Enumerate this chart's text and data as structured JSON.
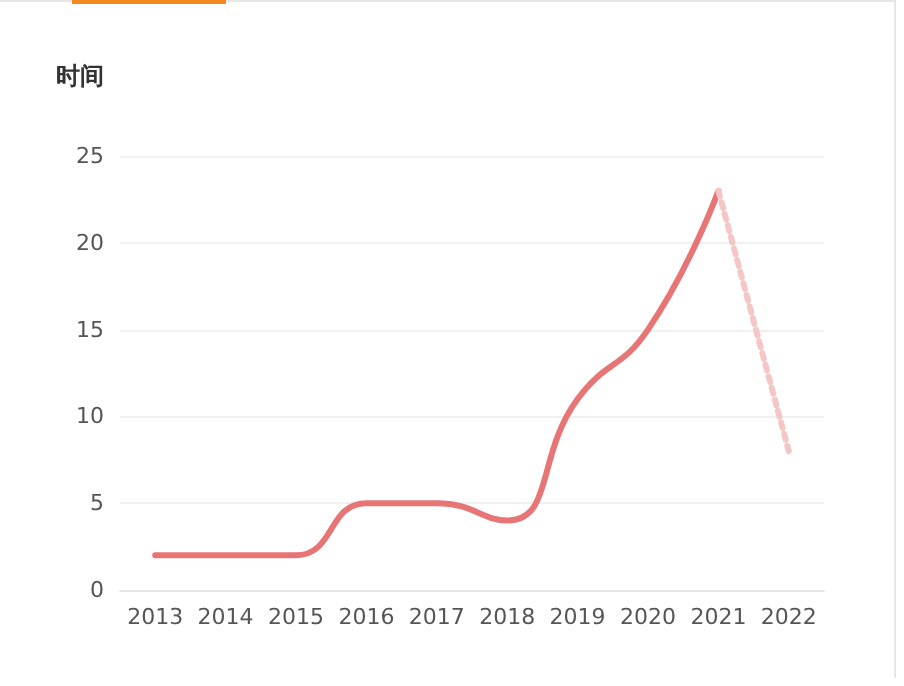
{
  "chart_data": {
    "type": "line",
    "ylabel": "时间",
    "categories": [
      "2013",
      "2014",
      "2015",
      "2016",
      "2017",
      "2018",
      "2019",
      "2020",
      "2021",
      "2022"
    ],
    "series": [
      {
        "color": "#e87575",
        "values": [
          2,
          2,
          2,
          5,
          5,
          4,
          11,
          15,
          23,
          null
        ],
        "line_style": "solid"
      },
      {
        "color": "#f5c6c6",
        "values": [
          null,
          null,
          null,
          null,
          null,
          null,
          null,
          null,
          23,
          8
        ],
        "line_style": "dotted"
      }
    ],
    "ylim": [
      0,
      25
    ],
    "yticks": [
      0,
      5,
      10,
      15,
      20,
      25
    ],
    "grid": "y",
    "marker": "none"
  }
}
